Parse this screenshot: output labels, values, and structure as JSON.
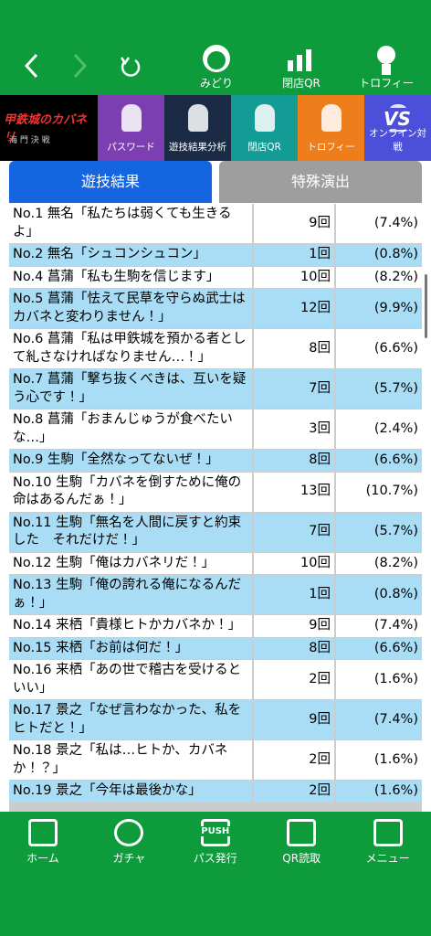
{
  "top_bar": {
    "items": [
      "みどり",
      "閉店QR",
      "トロフィー"
    ]
  },
  "menu": {
    "logo": "甲鉄城のカバネリ",
    "logo_sub": "海 門 決 戦",
    "vs_badge": "VS",
    "items": [
      "パスワード",
      "遊技結果分析",
      "閉店QR",
      "トロフィー",
      "オンライン対戦"
    ],
    "colors": [
      "#7b3fb2",
      "#1c2b45",
      "#139c96",
      "#ee7d1c",
      "#4c4fd9"
    ]
  },
  "tabs": {
    "items": [
      "遊技結果",
      "特殊演出"
    ],
    "active": 0
  },
  "table": {
    "rows": [
      [
        "No.1 無名「私たちは弱くても生きるよ」",
        "9回",
        "(7.4%)"
      ],
      [
        "No.2 無名「シュコンシュコン」",
        "1回",
        "(0.8%)"
      ],
      [
        "No.4 菖蒲「私も生駒を信じます」",
        "10回",
        "(8.2%)"
      ],
      [
        "No.5 菖蒲「怯えて民草を守らぬ武士はカバネと変わりません！」",
        "12回",
        "(9.9%)"
      ],
      [
        "No.6 菖蒲「私は甲鉄城を預かる者として糺さなければなりません…！」",
        "8回",
        "(6.6%)"
      ],
      [
        "No.7 菖蒲「撃ち抜くべきは、互いを疑う心です！」",
        "7回",
        "(5.7%)"
      ],
      [
        "No.8 菖蒲「おまんじゅうが食べたいな…」",
        "3回",
        "(2.4%)"
      ],
      [
        "No.9 生駒「全然なってないぜ！」",
        "8回",
        "(6.6%)"
      ],
      [
        "No.10 生駒「カバネを倒すために俺の命はあるんだぁ！」",
        "13回",
        "(10.7%)"
      ],
      [
        "No.11 生駒「無名を人間に戻すと約束した　それだけだ！」",
        "7回",
        "(5.7%)"
      ],
      [
        "No.12 生駒「俺はカバネリだ！」",
        "10回",
        "(8.2%)"
      ],
      [
        "No.13 生駒「俺の誇れる俺になるんだぁ！」",
        "1回",
        "(0.8%)"
      ],
      [
        "No.14 来栖「貴様ヒトかカバネか！」",
        "9回",
        "(7.4%)"
      ],
      [
        "No.15 来栖「お前は何だ！」",
        "8回",
        "(6.6%)"
      ],
      [
        "No.16 来栖「あの世で稽古を受けるといい」",
        "2回",
        "(1.6%)"
      ],
      [
        "No.17 景之「なぜ言わなかった、私をヒトだと！」",
        "9回",
        "(7.4%)"
      ],
      [
        "No.18 景之「私は…ヒトか、カバネか！？」",
        "2回",
        "(1.6%)"
      ],
      [
        "No.19 景之「今年は最後かな」",
        "2回",
        "(1.6%)"
      ]
    ]
  },
  "bottom_nav": {
    "items": [
      "ホーム",
      "ガチャ",
      "パス発行",
      "QR読取",
      "メニュー"
    ],
    "push_badge": "PUSH"
  }
}
